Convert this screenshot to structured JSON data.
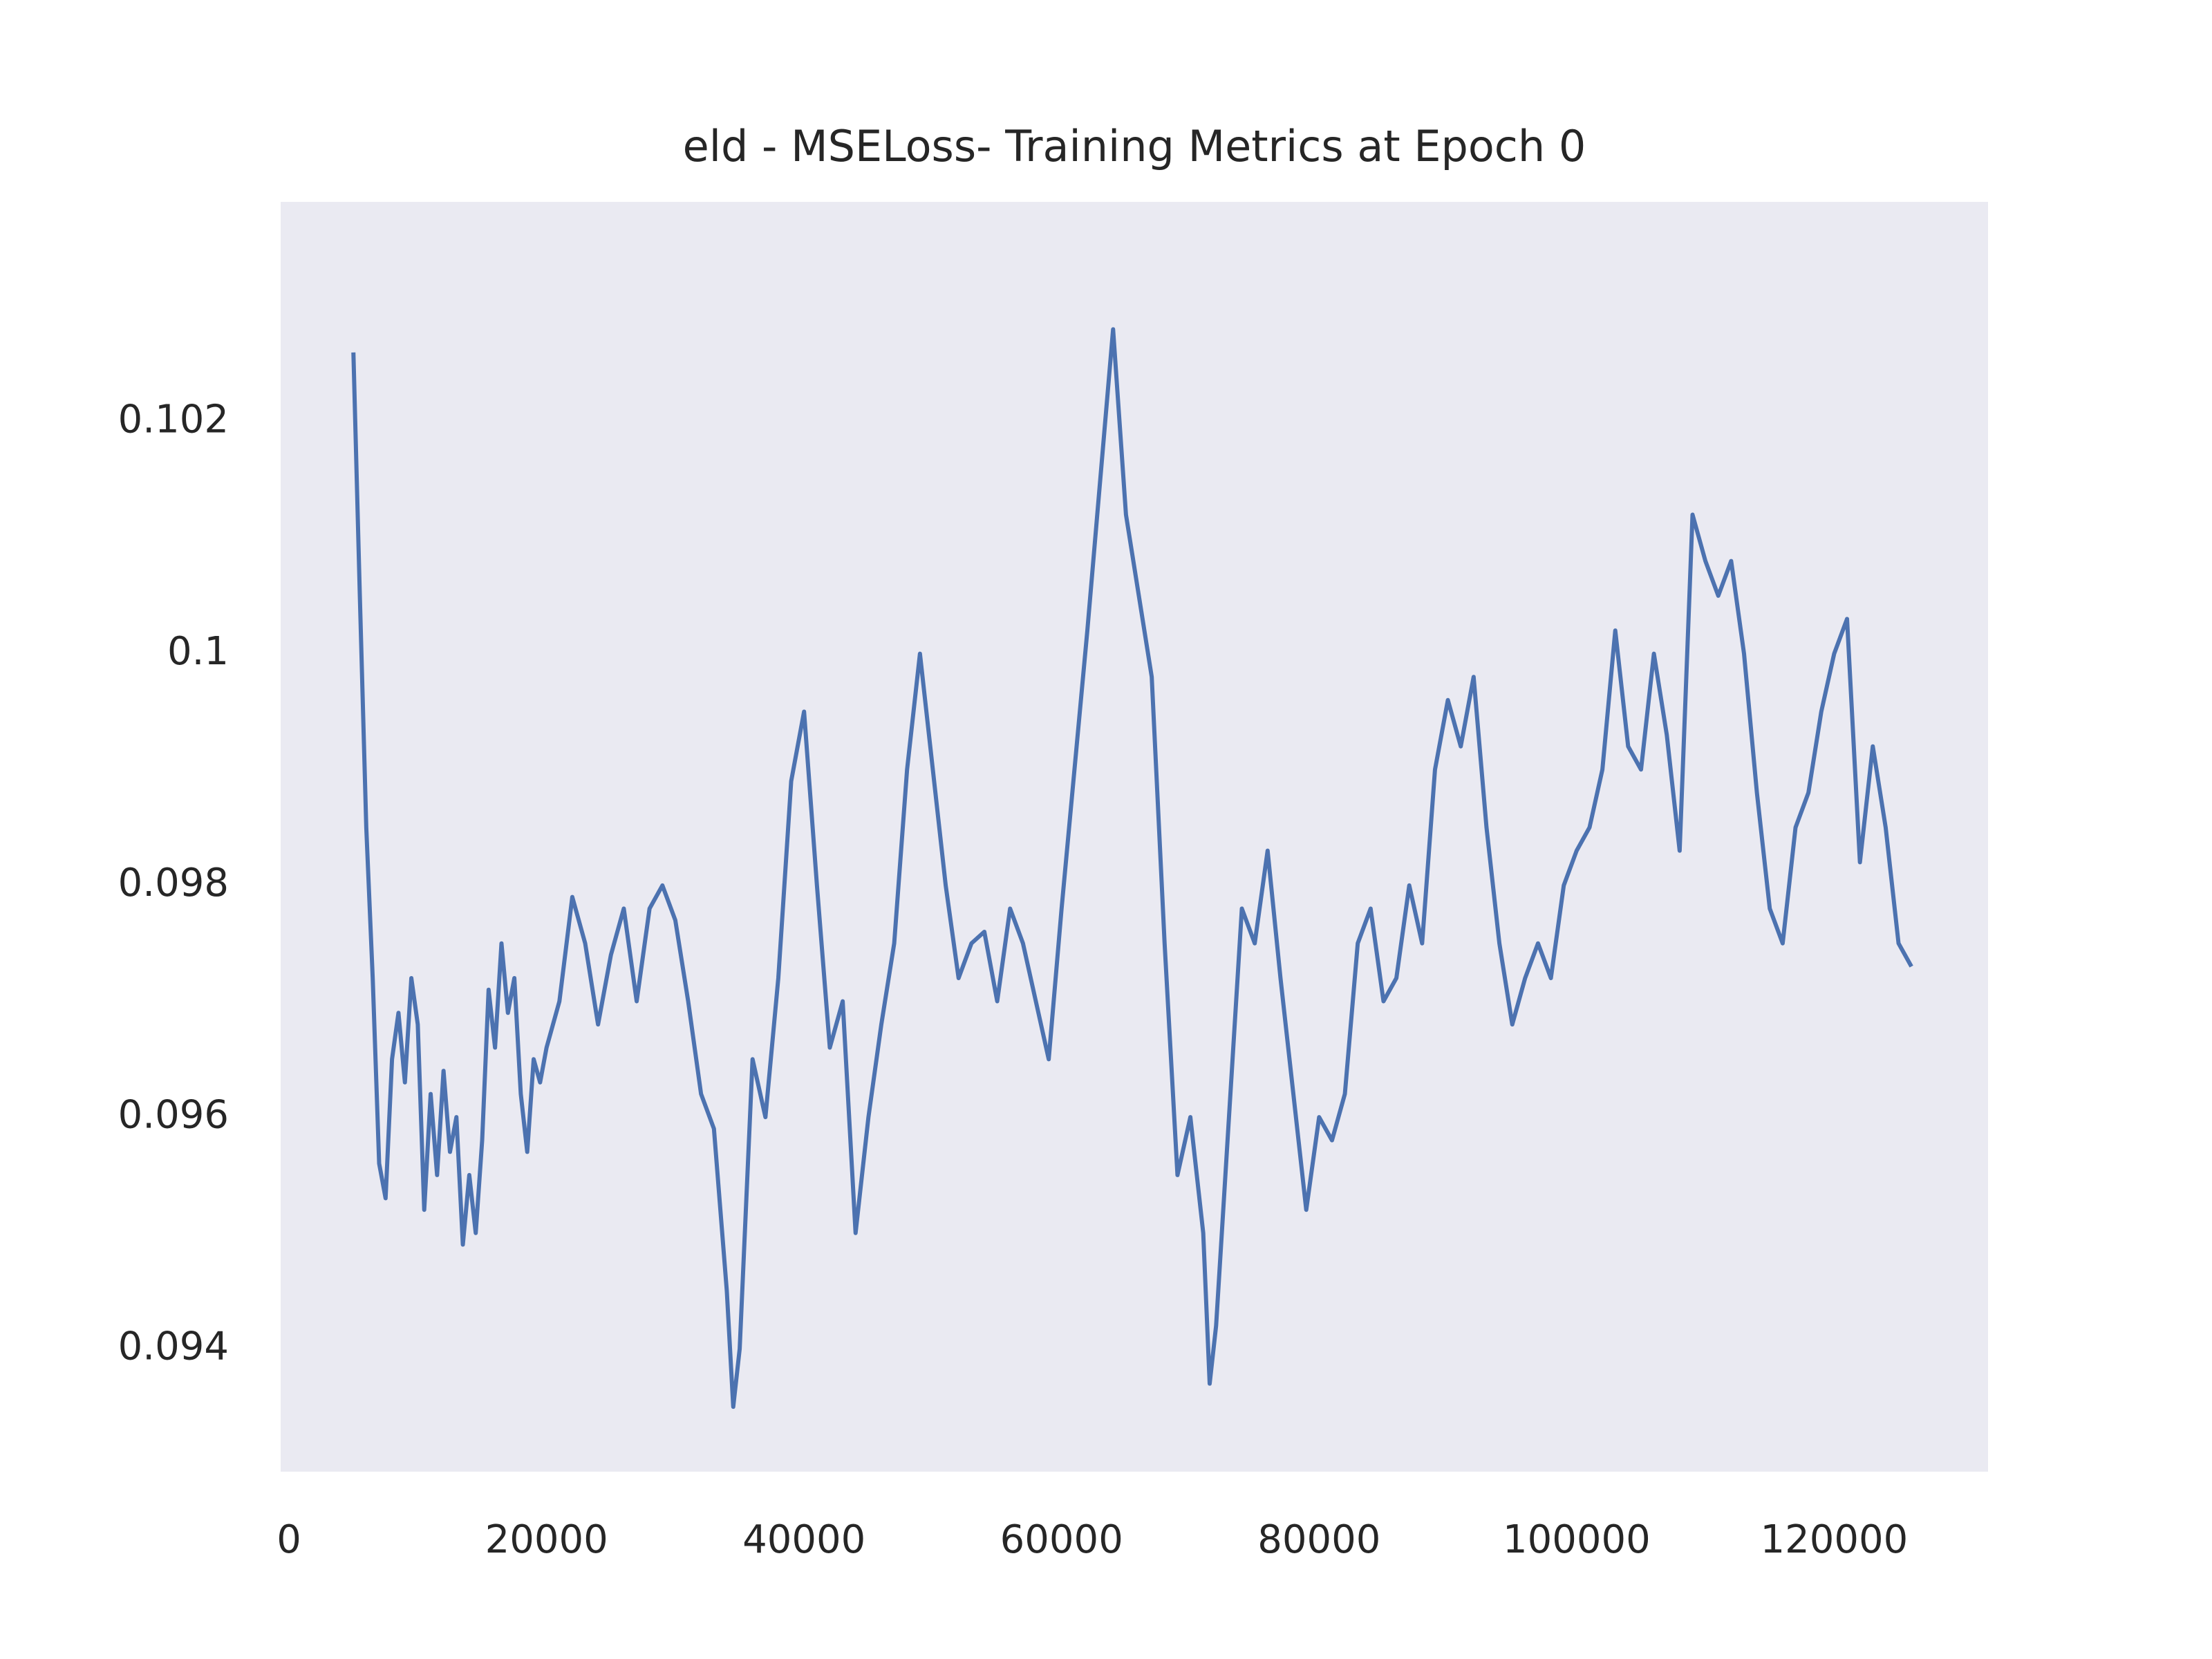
{
  "chart_data": {
    "type": "line",
    "title": "eld - MSELoss- Training Metrics at Epoch 0",
    "x": [
      5000,
      5500,
      6000,
      6500,
      7000,
      7500,
      8000,
      8500,
      9000,
      9500,
      10000,
      10500,
      11000,
      11500,
      12000,
      12500,
      13000,
      13500,
      14000,
      14500,
      15000,
      15500,
      16000,
      16500,
      17000,
      17500,
      18000,
      18500,
      19000,
      19500,
      20000,
      21000,
      22000,
      23000,
      24000,
      25000,
      26000,
      27000,
      28000,
      29000,
      30000,
      31000,
      32000,
      33000,
      34000,
      34500,
      35000,
      36000,
      37000,
      38000,
      39000,
      40000,
      41000,
      42000,
      43000,
      44000,
      45000,
      46000,
      47000,
      48000,
      49000,
      50000,
      51000,
      52000,
      53000,
      54000,
      55000,
      56000,
      57000,
      58000,
      59000,
      60000,
      61000,
      62000,
      63000,
      64000,
      65000,
      66000,
      67000,
      68000,
      69000,
      70000,
      71000,
      71500,
      72000,
      73000,
      74000,
      75000,
      76000,
      77000,
      78000,
      79000,
      80000,
      81000,
      82000,
      83000,
      84000,
      85000,
      86000,
      87000,
      88000,
      89000,
      90000,
      91000,
      92000,
      93000,
      94000,
      95000,
      96000,
      97000,
      98000,
      99000,
      100000,
      101000,
      102000,
      103000,
      104000,
      105000,
      106000,
      107000,
      108000,
      109000,
      110000,
      111000,
      112000,
      113000,
      114000,
      115000,
      116000,
      117000,
      118000,
      119000,
      120000,
      121000,
      122000,
      123000,
      124000,
      125000,
      126000
    ],
    "series": [
      {
        "color": "#4c72b0",
        "values": [
          0.1026,
          0.1005,
          0.0985,
          0.0972,
          0.0956,
          0.0953,
          0.0965,
          0.0969,
          0.0963,
          0.0972,
          0.0968,
          0.0952,
          0.0962,
          0.0955,
          0.0964,
          0.0957,
          0.096,
          0.0949,
          0.0955,
          0.095,
          0.0958,
          0.0971,
          0.0966,
          0.0975,
          0.0969,
          0.0972,
          0.0962,
          0.0957,
          0.0965,
          0.0963,
          0.0966,
          0.097,
          0.0979,
          0.0975,
          0.0968,
          0.0974,
          0.0978,
          0.097,
          0.0978,
          0.098,
          0.0977,
          0.097,
          0.0962,
          0.0959,
          0.0945,
          0.0935,
          0.094,
          0.0965,
          0.096,
          0.0972,
          0.0989,
          0.0995,
          0.098,
          0.0966,
          0.097,
          0.095,
          0.096,
          0.0968,
          0.0975,
          0.099,
          0.1,
          0.099,
          0.098,
          0.0972,
          0.0975,
          0.0976,
          0.097,
          0.0978,
          0.0975,
          0.097,
          0.0965,
          0.0978,
          0.099,
          0.1002,
          0.1015,
          0.1028,
          0.1012,
          0.1005,
          0.0998,
          0.0975,
          0.0955,
          0.096,
          0.095,
          0.0937,
          0.0942,
          0.096,
          0.0978,
          0.0975,
          0.0983,
          0.0972,
          0.0962,
          0.0952,
          0.096,
          0.0958,
          0.0962,
          0.0975,
          0.0978,
          0.097,
          0.0972,
          0.098,
          0.0975,
          0.099,
          0.0996,
          0.0992,
          0.0998,
          0.0985,
          0.0975,
          0.0968,
          0.0972,
          0.0975,
          0.0972,
          0.098,
          0.0983,
          0.0985,
          0.099,
          0.1002,
          0.0992,
          0.099,
          0.1,
          0.0993,
          0.0983,
          0.1012,
          0.1008,
          0.1005,
          0.1008,
          0.1,
          0.0988,
          0.0978,
          0.0975,
          0.0985,
          0.0988,
          0.0995,
          0.1,
          0.1003,
          0.0982,
          0.0992,
          0.0985,
          0.0975,
          0.0973
        ]
      }
    ],
    "xlim": [
      -650,
      131950
    ],
    "ylim": [
      0.09294,
      0.1039
    ],
    "xticks": [
      0,
      20000,
      40000,
      60000,
      80000,
      100000,
      120000
    ],
    "yticks": [
      0.094,
      0.096,
      0.098,
      0.1,
      0.102
    ],
    "grid": false,
    "background": "#eaeaf2"
  }
}
